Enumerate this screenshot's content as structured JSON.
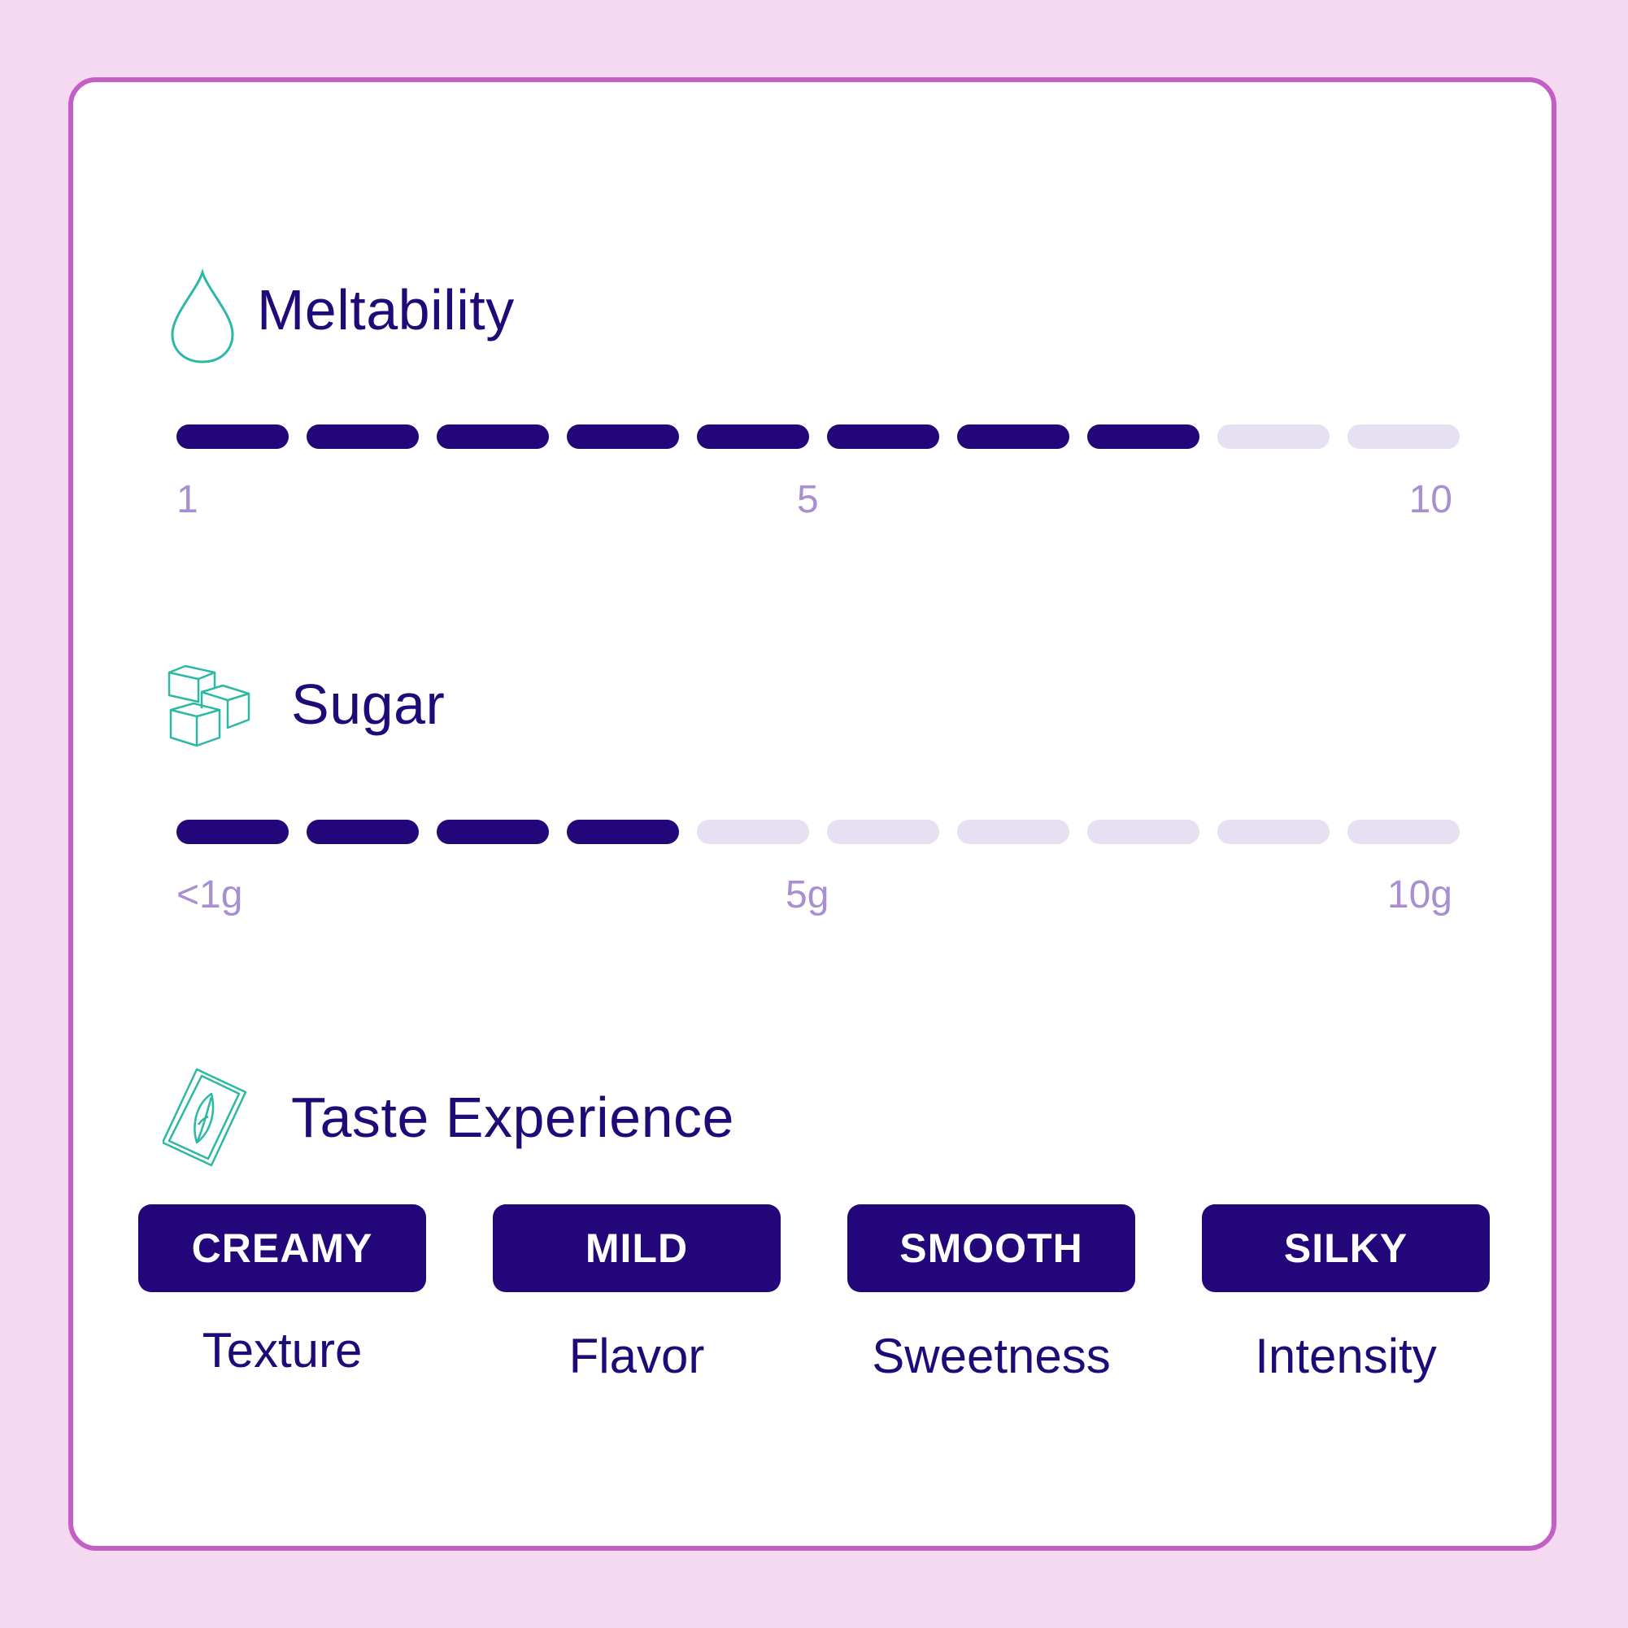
{
  "colors": {
    "background": "#f4d9f1",
    "card_border": "#c45fc6",
    "primary": "#22067a",
    "inactive": "#e6e0f2",
    "tick_text": "#a98ed2",
    "icon": "#2bb8a4"
  },
  "meltability": {
    "title": "Meltability",
    "icon": "water-drop-icon",
    "level": 8,
    "max": 10,
    "ticks": [
      "1",
      "5",
      "10"
    ]
  },
  "sugar": {
    "title": "Sugar",
    "icon": "sugar-cubes-icon",
    "level": 4,
    "max": 10,
    "ticks": [
      "<1g",
      "5g",
      "10g"
    ]
  },
  "taste": {
    "title": "Taste Experience",
    "icon": "leaf-sachet-icon",
    "tags": [
      {
        "value": "CREAMY",
        "label": "Texture"
      },
      {
        "value": "MILD",
        "label": "Flavor"
      },
      {
        "value": "SMOOTH",
        "label": "Sweetness"
      },
      {
        "value": "SILKY",
        "label": "Intensity"
      }
    ]
  }
}
